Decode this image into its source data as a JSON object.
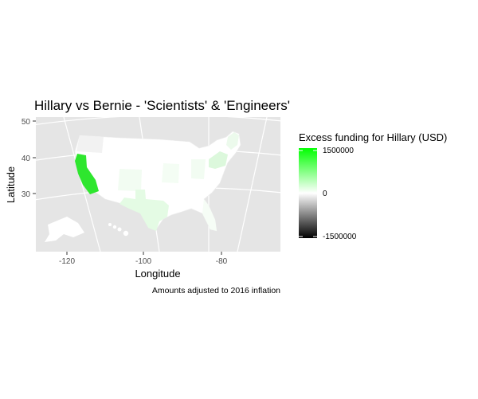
{
  "title": "Hillary vs Bernie - 'Scientists' & 'Engineers'",
  "x_axis": {
    "label": "Longitude",
    "ticks": [
      "-120",
      "-100",
      "-80"
    ]
  },
  "y_axis": {
    "label": "Latitude",
    "ticks": [
      "50",
      "40",
      "30"
    ]
  },
  "caption": "Amounts adjusted to 2016 inflation",
  "legend": {
    "title": "Excess funding for Hillary (USD)",
    "labels": [
      "1500000",
      "0",
      "-1500000"
    ],
    "color_high": "#00ff00",
    "color_mid": "#ffffff",
    "color_low": "#000000"
  },
  "panel_background": "#e5e5e5",
  "map_fills": {
    "california": "#2ee62e",
    "texas": "#e4fbe4",
    "northeast": "#dcf8dc",
    "light_green": "#f2fcf2",
    "neutral": "#ffffff",
    "grey": "#f2f2f2"
  }
}
